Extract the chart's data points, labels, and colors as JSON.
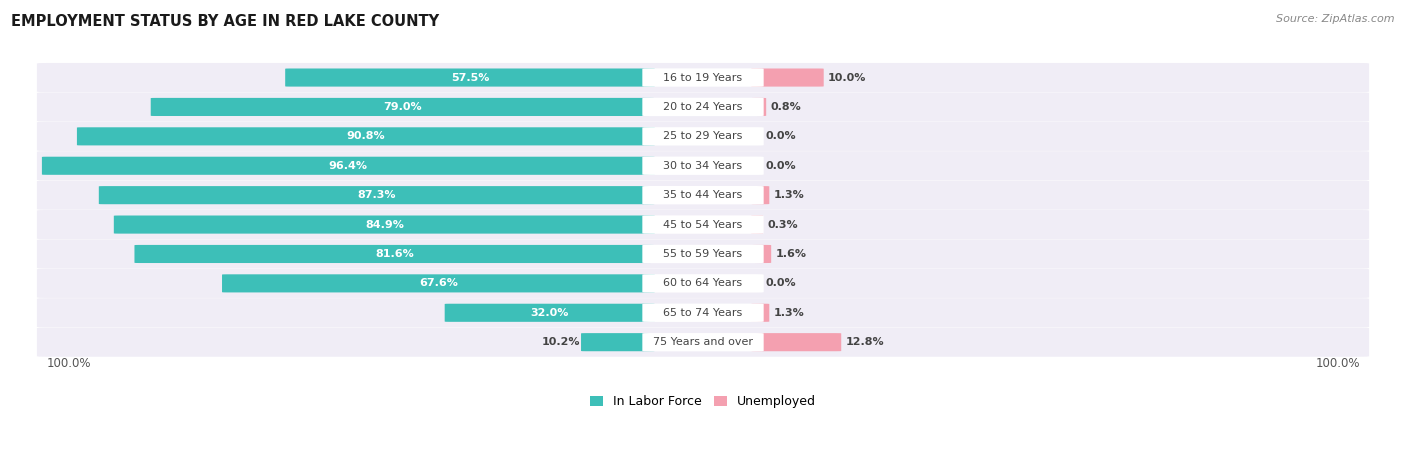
{
  "title": "EMPLOYMENT STATUS BY AGE IN RED LAKE COUNTY",
  "source": "Source: ZipAtlas.com",
  "categories": [
    "16 to 19 Years",
    "20 to 24 Years",
    "25 to 29 Years",
    "30 to 34 Years",
    "35 to 44 Years",
    "45 to 54 Years",
    "55 to 59 Years",
    "60 to 64 Years",
    "65 to 74 Years",
    "75 Years and over"
  ],
  "labor_force": [
    57.5,
    79.0,
    90.8,
    96.4,
    87.3,
    84.9,
    81.6,
    67.6,
    32.0,
    10.2
  ],
  "unemployed": [
    10.0,
    0.8,
    0.0,
    0.0,
    1.3,
    0.3,
    1.6,
    0.0,
    1.3,
    12.8
  ],
  "labor_force_color": "#3dbfb8",
  "unemployed_color": "#f4a0b0",
  "row_bg_color": "#f0edf6",
  "max_value": 100.0,
  "label_white": "#ffffff",
  "label_dark": "#444444",
  "title_fontsize": 10.5,
  "source_fontsize": 8,
  "tick_fontsize": 8.5,
  "bar_label_fontsize": 8,
  "legend_fontsize": 9,
  "category_fontsize": 8
}
